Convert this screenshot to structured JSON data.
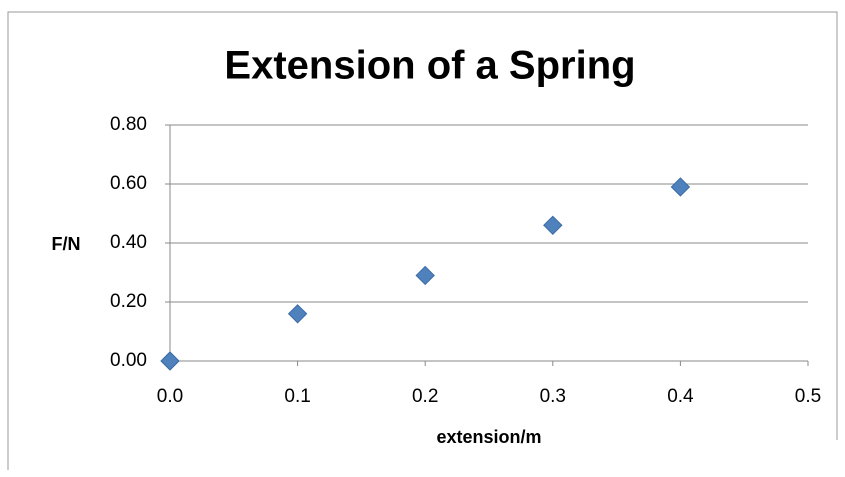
{
  "chart_data": {
    "type": "scatter",
    "title": "Extension of a Spring",
    "x_label": "extension/m",
    "y_label": "F/N",
    "series": [
      {
        "name": "F/N",
        "color": "#4f81bd",
        "x": [
          0.0,
          0.1,
          0.2,
          0.3,
          0.4
        ],
        "values": [
          0,
          0.16,
          0.29,
          0.46,
          0.59
        ]
      }
    ],
    "xlim": [
      0,
      0.5
    ],
    "xticks": [
      {
        "value": 0,
        "label": "0.0"
      },
      0.1,
      0.2,
      0.3,
      0.4,
      0.5
    ],
    "ylim": [
      0,
      0.8
    ],
    "yticks": [
      {
        "value": 0,
        "label": "0.00"
      },
      {
        "value": 0.2,
        "label": "0.20"
      },
      {
        "value": 0.4,
        "label": "0.40"
      },
      {
        "value": 0.6,
        "label": "0.60"
      },
      {
        "value": 0.8,
        "label": "0.80"
      }
    ],
    "grid": true
  }
}
